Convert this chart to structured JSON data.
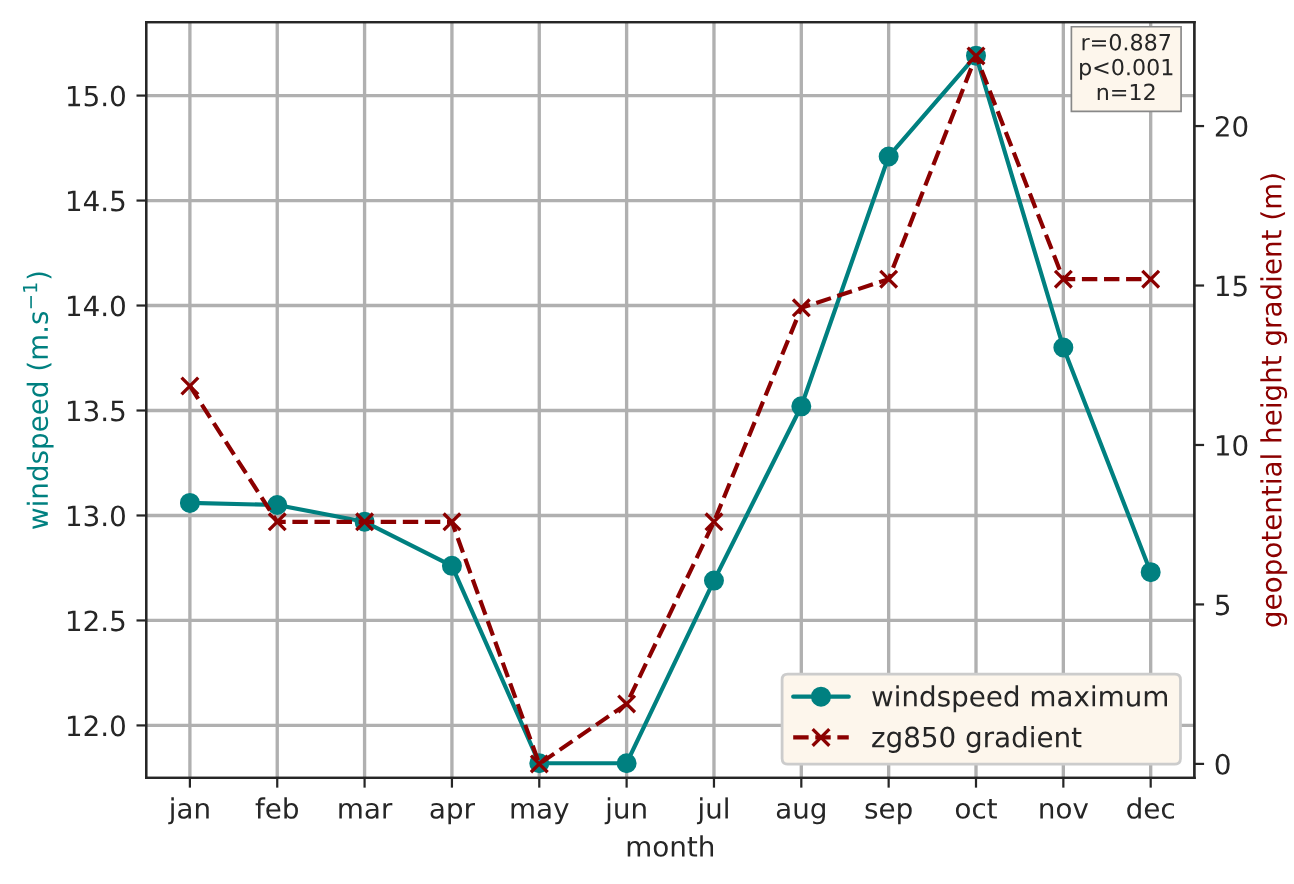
{
  "chart_data": {
    "type": "line",
    "xlabel": "month",
    "ylabel": "windspeed (m.s$^{−1}$)",
    "y2label": "geopotential height gradient (m)",
    "categories": [
      "jan",
      "feb",
      "mar",
      "apr",
      "may",
      "jun",
      "jul",
      "aug",
      "sep",
      "oct",
      "nov",
      "dec"
    ],
    "series": [
      {
        "name": "windspeed maximum",
        "color": "#008080",
        "marker": "circle",
        "line_style": "solid",
        "values": [
          13.06,
          13.05,
          12.97,
          12.76,
          11.82,
          11.82,
          12.69,
          13.52,
          14.71,
          15.19,
          13.8,
          12.73
        ]
      },
      {
        "name": "zg850 gradient",
        "color": "#8b0000",
        "marker": "cross",
        "line_style": "dashed",
        "axis": "y2",
        "values": [
          11.85,
          7.59,
          7.59,
          7.59,
          0,
          1.88,
          7.59,
          14.3,
          15.2,
          22.2,
          15.2,
          15.2
        ]
      }
    ],
    "ylim": [
      11.75,
      15.35
    ],
    "yticks": [
      {
        "value": 12,
        "label": "12.0"
      },
      {
        "value": 12.5,
        "label": "12.5"
      },
      {
        "value": 13,
        "label": "13.0"
      },
      {
        "value": 13.5,
        "label": "13.5"
      },
      {
        "value": 14,
        "label": "14.0"
      },
      {
        "value": 14.5,
        "label": "14.5"
      },
      {
        "value": 15,
        "label": "15.0"
      }
    ],
    "y2lim": [
      -0.44,
      23.26
    ],
    "y2ticks": [
      0,
      5,
      10,
      15,
      20
    ],
    "annotations": [
      "r=0.887\np<0.001\nn=12"
    ],
    "grid": true,
    "legend": "bottom right"
  }
}
